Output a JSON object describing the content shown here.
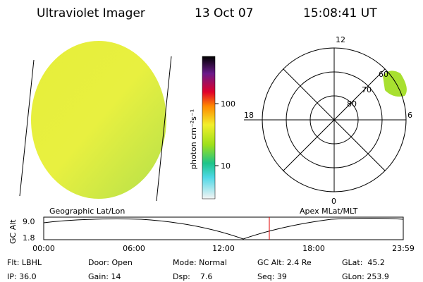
{
  "header": {
    "title": "Ultraviolet Imager",
    "date": "13 Oct 07",
    "time": "15:08:41 UT"
  },
  "colorbar": {
    "label": "photon cm⁻²s⁻¹",
    "ticks": [
      "100",
      "10"
    ]
  },
  "polar": {
    "clock_labels": [
      "12",
      "18",
      "6",
      "0"
    ],
    "ring_labels": [
      "60",
      "70",
      "80"
    ]
  },
  "timeline": {
    "left_title": "Geographic Lat/Lon",
    "right_title": "Apex MLat/MLT",
    "y_label": "GC Alt",
    "y_ticks": [
      "9.0",
      "1.8"
    ],
    "x_ticks": [
      "00:00",
      "06:00",
      "12:00",
      "18:00",
      "23:59"
    ]
  },
  "info": {
    "rows": [
      [
        "Flt: LBHL",
        "Door: Open",
        "Mode: Normal",
        "GC Alt: 2.4 Re",
        "GLat:  45.2"
      ],
      [
        "IP: 36.0",
        "Gain: 14",
        "Dsp:    7.6",
        "Seq: 39",
        "GLon: 253.9"
      ]
    ]
  }
}
